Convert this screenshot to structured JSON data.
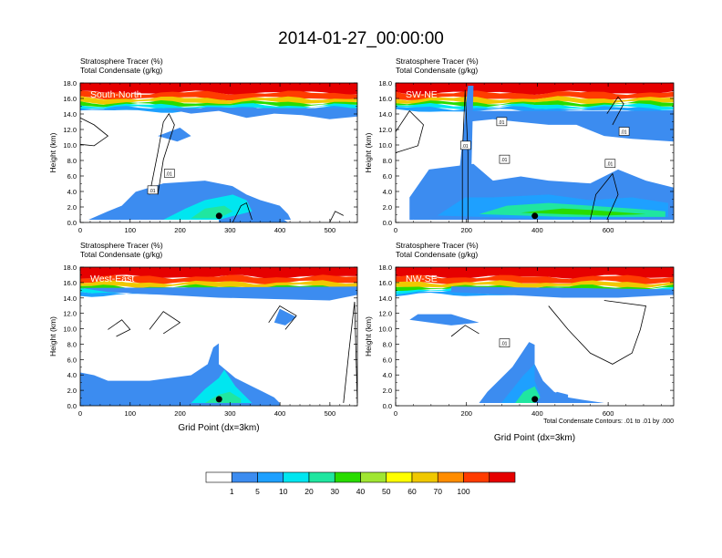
{
  "figure_title": "2014-01-27_00:00:00",
  "contour_note": "Total Condensate Contours: .01 to .01 by .000",
  "colors": {
    "levels": [
      "#ffffff",
      "#3c8cf0",
      "#1ea0ff",
      "#00e6f0",
      "#20e6a0",
      "#28dc00",
      "#a0e632",
      "#ffff00",
      "#f0c800",
      "#ff8c00",
      "#ff3c00",
      "#e60000"
    ]
  },
  "chart_data": [
    {
      "type": "heatmap",
      "panel_label": "South-North",
      "title": "Stratosphere Tracer   (%)",
      "subtitle": "Total Condensate   (g/kg)",
      "ylabel": "Height (km)",
      "xlabel": "",
      "xlim": [
        0,
        555
      ],
      "ylim": [
        0,
        18
      ],
      "xticks": [
        "0",
        "100",
        "200",
        "300",
        "400",
        "500"
      ],
      "yticks": [
        "0.0",
        "2.0",
        "4.0",
        "6.0",
        "8.0",
        "10.0",
        "12.0",
        "14.0",
        "16.0",
        "18.0"
      ],
      "contour_labels": [
        ".01",
        ".01"
      ],
      "marker_x": 278,
      "legend": {
        "labels": [
          "1",
          "5",
          "10",
          "20",
          "30",
          "40",
          "50",
          "60",
          "70",
          "100"
        ],
        "position": "bottom"
      }
    },
    {
      "type": "heatmap",
      "panel_label": "SW-NE",
      "title": "Stratosphere Tracer   (%)",
      "subtitle": "Total Condensate   (g/kg)",
      "ylabel": "Height (km)",
      "xlabel": "",
      "xlim": [
        0,
        785
      ],
      "ylim": [
        0,
        18
      ],
      "xticks": [
        "0",
        "200",
        "400",
        "600"
      ],
      "yticks": [
        "0.0",
        "2.0",
        "4.0",
        "6.0",
        "8.0",
        "10.0",
        "12.0",
        "14.0",
        "16.0",
        "18.0"
      ],
      "contour_labels": [
        ".01",
        ".01",
        ".01",
        ".01",
        ".01"
      ],
      "marker_x": 393
    },
    {
      "type": "heatmap",
      "panel_label": "West-East",
      "title": "Stratosphere Tracer   (%)",
      "subtitle": "Total Condensate   (g/kg)",
      "ylabel": "Height (km)",
      "xlabel": "Grid Point (dx=3km)",
      "xlim": [
        0,
        555
      ],
      "ylim": [
        0,
        18
      ],
      "xticks": [
        "0",
        "100",
        "200",
        "300",
        "400",
        "500"
      ],
      "yticks": [
        "0.0",
        "2.0",
        "4.0",
        "6.0",
        "8.0",
        "10.0",
        "12.0",
        "14.0",
        "16.0",
        "18.0"
      ],
      "contour_labels": [],
      "marker_x": 278
    },
    {
      "type": "heatmap",
      "panel_label": "NW-SE",
      "title": "Stratosphere Tracer   (%)",
      "subtitle": "Total Condensate   (g/kg)",
      "ylabel": "Height (km)",
      "xlabel": "Grid Point (dx=3km)",
      "xlim": [
        0,
        785
      ],
      "ylim": [
        0,
        18
      ],
      "xticks": [
        "0",
        "200",
        "400",
        "600"
      ],
      "yticks": [
        "0.0",
        "2.0",
        "4.0",
        "6.0",
        "8.0",
        "10.0",
        "12.0",
        "14.0",
        "16.0",
        "18.0"
      ],
      "contour_labels": [
        ".01"
      ],
      "marker_x": 393
    }
  ]
}
